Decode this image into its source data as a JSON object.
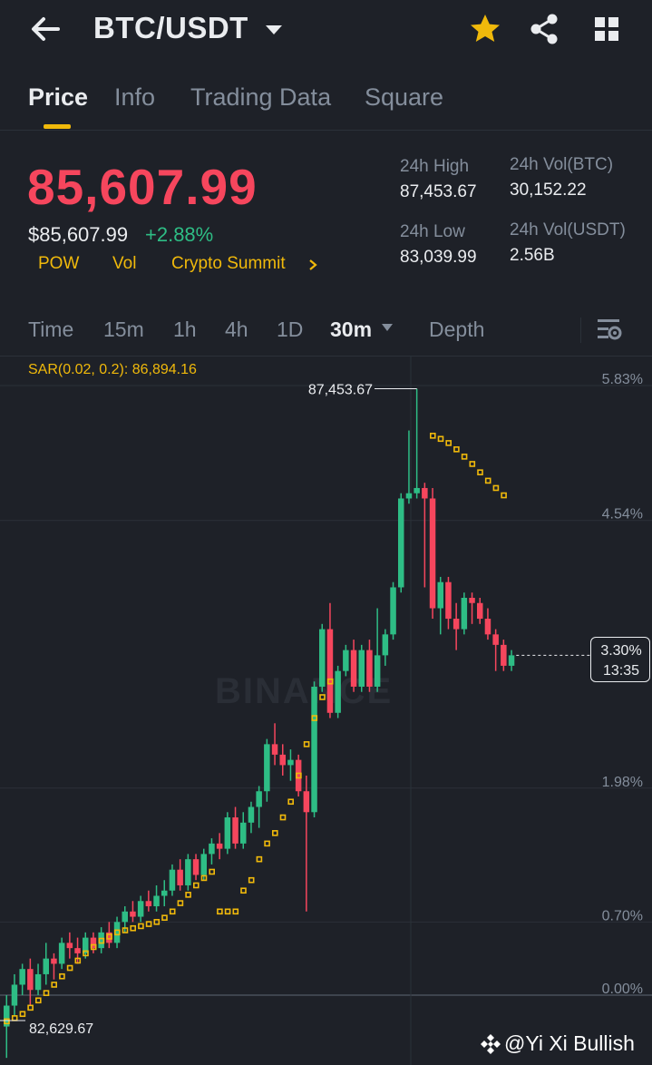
{
  "header": {
    "pair": "BTC/USDT",
    "icons": [
      "back-arrow-icon",
      "caret-down-icon",
      "star-icon",
      "share-icon",
      "grid-icon"
    ],
    "star_color": "#f0b90b"
  },
  "tabs": [
    {
      "label": "Price"
    },
    {
      "label": "Info"
    },
    {
      "label": "Trading Data"
    },
    {
      "label": "Square"
    }
  ],
  "price": {
    "last": "85,607.99",
    "usd": "$85,607.99",
    "change": "+2.88%",
    "tags": [
      "POW",
      "Vol",
      "Crypto Summit"
    ]
  },
  "stats": {
    "high_label": "24h High",
    "high_value": "87,453.67",
    "vol_btc_label": "24h Vol(BTC)",
    "vol_btc_value": "30,152.22",
    "low_label": "24h Low",
    "low_value": "83,039.99",
    "vol_usdt_label": "24h Vol(USDT)",
    "vol_usdt_value": "2.56B"
  },
  "intervals": [
    "Time",
    "15m",
    "1h",
    "4h",
    "1D",
    "30m",
    "Depth"
  ],
  "chart": {
    "indicator": "SAR(0.02, 0.2): 86,894.16",
    "pct_labels": [
      "5.83%",
      "4.54%",
      "1.98%",
      "0.70%",
      "0.00%"
    ],
    "high_marker": "87,453.67",
    "low_marker": "82,629.67",
    "current_pct": "3.30%",
    "countdown": "13:35",
    "watermark": "BINANCE",
    "up_color": "#2ebd85",
    "down_color": "#f6465d",
    "sar_color": "#f0b90b"
  },
  "chart_data": {
    "type": "candlestick",
    "indicator": "SAR(0.02, 0.2)",
    "y_unit": "% change",
    "y_ticks": [
      0.0,
      0.7,
      1.98,
      4.54,
      5.83
    ],
    "candles": [
      {
        "o": -0.3,
        "h": 0.0,
        "l": -0.6,
        "c": -0.1
      },
      {
        "o": -0.1,
        "h": 0.2,
        "l": -0.2,
        "c": 0.1
      },
      {
        "o": 0.1,
        "h": 0.3,
        "l": 0.0,
        "c": 0.25
      },
      {
        "o": 0.25,
        "h": 0.35,
        "l": -0.1,
        "c": 0.05
      },
      {
        "o": 0.05,
        "h": 0.3,
        "l": 0.0,
        "c": 0.2
      },
      {
        "o": 0.2,
        "h": 0.5,
        "l": 0.1,
        "c": 0.35
      },
      {
        "o": 0.35,
        "h": 0.4,
        "l": 0.15,
        "c": 0.3
      },
      {
        "o": 0.3,
        "h": 0.55,
        "l": 0.25,
        "c": 0.5
      },
      {
        "o": 0.5,
        "h": 0.6,
        "l": 0.35,
        "c": 0.45
      },
      {
        "o": 0.45,
        "h": 0.55,
        "l": 0.3,
        "c": 0.4
      },
      {
        "o": 0.4,
        "h": 0.6,
        "l": 0.35,
        "c": 0.55
      },
      {
        "o": 0.55,
        "h": 0.6,
        "l": 0.4,
        "c": 0.45
      },
      {
        "o": 0.45,
        "h": 0.65,
        "l": 0.4,
        "c": 0.6
      },
      {
        "o": 0.6,
        "h": 0.7,
        "l": 0.45,
        "c": 0.5
      },
      {
        "o": 0.5,
        "h": 0.75,
        "l": 0.45,
        "c": 0.7
      },
      {
        "o": 0.7,
        "h": 0.85,
        "l": 0.6,
        "c": 0.8
      },
      {
        "o": 0.8,
        "h": 0.9,
        "l": 0.7,
        "c": 0.75
      },
      {
        "o": 0.75,
        "h": 0.95,
        "l": 0.7,
        "c": 0.9
      },
      {
        "o": 0.9,
        "h": 1.0,
        "l": 0.8,
        "c": 0.85
      },
      {
        "o": 0.85,
        "h": 1.05,
        "l": 0.8,
        "c": 0.95
      },
      {
        "o": 0.95,
        "h": 1.1,
        "l": 0.85,
        "c": 1.0
      },
      {
        "o": 1.0,
        "h": 1.25,
        "l": 0.95,
        "c": 1.2
      },
      {
        "o": 1.2,
        "h": 1.3,
        "l": 1.0,
        "c": 1.05
      },
      {
        "o": 1.05,
        "h": 1.35,
        "l": 1.0,
        "c": 1.3
      },
      {
        "o": 1.3,
        "h": 1.35,
        "l": 1.1,
        "c": 1.15
      },
      {
        "o": 1.15,
        "h": 1.4,
        "l": 1.1,
        "c": 1.35
      },
      {
        "o": 1.35,
        "h": 1.5,
        "l": 1.25,
        "c": 1.45
      },
      {
        "o": 1.45,
        "h": 1.55,
        "l": 1.3,
        "c": 1.4
      },
      {
        "o": 1.4,
        "h": 1.75,
        "l": 1.35,
        "c": 1.7
      },
      {
        "o": 1.7,
        "h": 1.8,
        "l": 1.4,
        "c": 1.45
      },
      {
        "o": 1.45,
        "h": 1.75,
        "l": 1.4,
        "c": 1.65
      },
      {
        "o": 1.65,
        "h": 1.85,
        "l": 1.55,
        "c": 1.8
      },
      {
        "o": 1.8,
        "h": 2.0,
        "l": 1.6,
        "c": 1.95
      },
      {
        "o": 1.95,
        "h": 2.45,
        "l": 1.85,
        "c": 2.4
      },
      {
        "o": 2.4,
        "h": 2.6,
        "l": 2.2,
        "c": 2.3
      },
      {
        "o": 2.3,
        "h": 2.4,
        "l": 2.1,
        "c": 2.2
      },
      {
        "o": 2.2,
        "h": 2.35,
        "l": 2.05,
        "c": 2.25
      },
      {
        "o": 2.25,
        "h": 2.3,
        "l": 1.9,
        "c": 1.95
      },
      {
        "o": 1.95,
        "h": 2.1,
        "l": 0.8,
        "c": 1.75
      },
      {
        "o": 1.75,
        "h": 3.0,
        "l": 1.7,
        "c": 2.95
      },
      {
        "o": 2.95,
        "h": 3.55,
        "l": 2.9,
        "c": 3.5
      },
      {
        "o": 3.5,
        "h": 3.75,
        "l": 2.65,
        "c": 2.7
      },
      {
        "o": 2.7,
        "h": 3.15,
        "l": 2.65,
        "c": 3.1
      },
      {
        "o": 3.1,
        "h": 3.35,
        "l": 3.05,
        "c": 3.3
      },
      {
        "o": 3.3,
        "h": 3.4,
        "l": 2.9,
        "c": 2.95
      },
      {
        "o": 2.95,
        "h": 3.35,
        "l": 2.9,
        "c": 3.3
      },
      {
        "o": 3.3,
        "h": 3.4,
        "l": 2.9,
        "c": 2.95
      },
      {
        "o": 2.95,
        "h": 3.7,
        "l": 2.9,
        "c": 3.25
      },
      {
        "o": 3.25,
        "h": 3.5,
        "l": 3.15,
        "c": 3.45
      },
      {
        "o": 3.45,
        "h": 3.95,
        "l": 3.4,
        "c": 3.9
      },
      {
        "o": 3.9,
        "h": 4.8,
        "l": 3.85,
        "c": 4.75
      },
      {
        "o": 4.75,
        "h": 5.4,
        "l": 4.7,
        "c": 4.8
      },
      {
        "o": 4.8,
        "h": 5.8,
        "l": 4.75,
        "c": 4.85
      },
      {
        "o": 4.85,
        "h": 4.9,
        "l": 3.9,
        "c": 4.75
      },
      {
        "o": 4.75,
        "h": 4.85,
        "l": 3.6,
        "c": 3.7
      },
      {
        "o": 3.7,
        "h": 4.0,
        "l": 3.45,
        "c": 3.95
      },
      {
        "o": 3.95,
        "h": 4.0,
        "l": 3.5,
        "c": 3.6
      },
      {
        "o": 3.6,
        "h": 3.75,
        "l": 3.3,
        "c": 3.5
      },
      {
        "o": 3.5,
        "h": 3.85,
        "l": 3.45,
        "c": 3.8
      },
      {
        "o": 3.8,
        "h": 3.85,
        "l": 3.55,
        "c": 3.75
      },
      {
        "o": 3.75,
        "h": 3.8,
        "l": 3.55,
        "c": 3.6
      },
      {
        "o": 3.6,
        "h": 3.7,
        "l": 3.4,
        "c": 3.45
      },
      {
        "o": 3.45,
        "h": 3.5,
        "l": 3.1,
        "c": 3.35
      },
      {
        "o": 3.35,
        "h": 3.4,
        "l": 3.1,
        "c": 3.15
      },
      {
        "o": 3.15,
        "h": 3.3,
        "l": 3.1,
        "c": 3.25
      }
    ],
    "sar_upper": [
      5.35,
      5.32,
      5.28,
      5.22,
      5.15,
      5.08,
      5.0,
      4.92,
      4.85,
      4.78
    ],
    "sar_lower": [
      -0.25,
      -0.22,
      -0.18,
      -0.12,
      -0.05,
      0.02,
      0.1,
      0.18,
      0.26,
      0.33,
      0.4,
      0.46,
      0.52,
      0.56,
      0.6,
      0.62,
      0.64,
      0.66,
      0.68,
      0.7,
      0.74,
      0.8,
      0.88,
      0.96,
      1.05,
      1.12,
      1.18,
      0.8,
      0.8,
      0.8,
      1.0,
      1.1,
      1.3,
      1.45,
      1.55,
      1.7,
      1.85,
      2.1,
      2.4,
      2.65,
      2.85,
      3.0
    ]
  }
}
